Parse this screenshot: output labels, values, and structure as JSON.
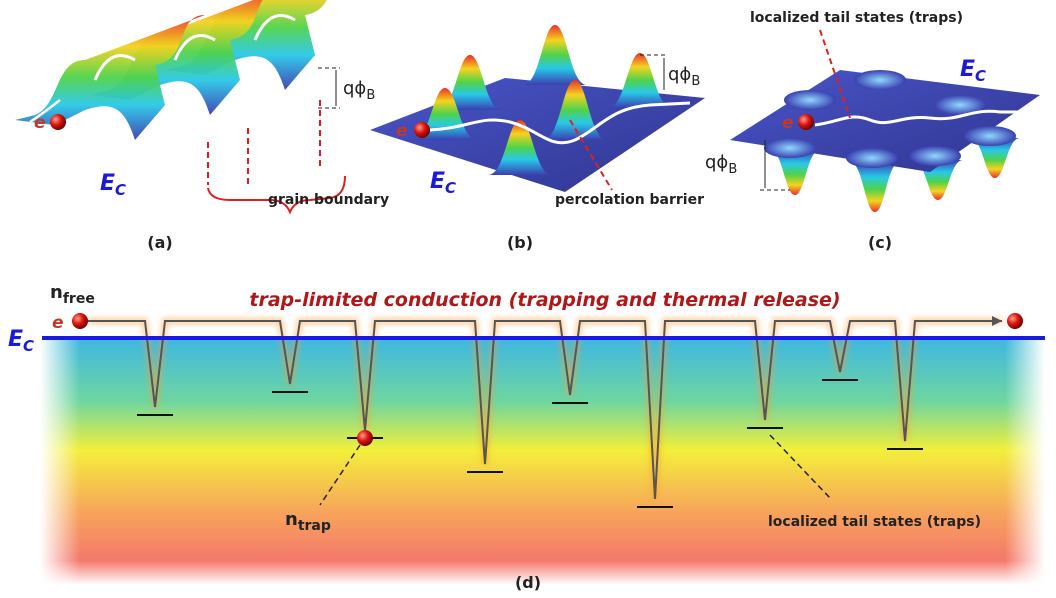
{
  "panels": [
    {
      "label": "(a)",
      "ec": {
        "main": "E",
        "sub": "C"
      },
      "electron": "e",
      "barrier": {
        "main": "qϕ",
        "sub": "B"
      },
      "annotation": "grain boundary"
    },
    {
      "label": "(b)",
      "ec": {
        "main": "E",
        "sub": "C"
      },
      "electron": "e",
      "barrier": {
        "main": "qϕ",
        "sub": "B"
      },
      "annotation": "percolation barrier"
    },
    {
      "label": "(c)",
      "ec": {
        "main": "E",
        "sub": "C"
      },
      "electron": "e",
      "barrier": {
        "main": "qϕ",
        "sub": "B"
      },
      "annotation": "localized tail states (traps)"
    }
  ],
  "panel_d": {
    "label": "(d)",
    "ec": {
      "main": "E",
      "sub": "C"
    },
    "electron": "e",
    "n_free": {
      "main": "n",
      "sub": "free"
    },
    "n_trap": {
      "main": "n",
      "sub": "trap"
    },
    "caption": "trap-limited conduction (trapping and thermal release)",
    "annotation": "localized tail states (traps)"
  }
}
